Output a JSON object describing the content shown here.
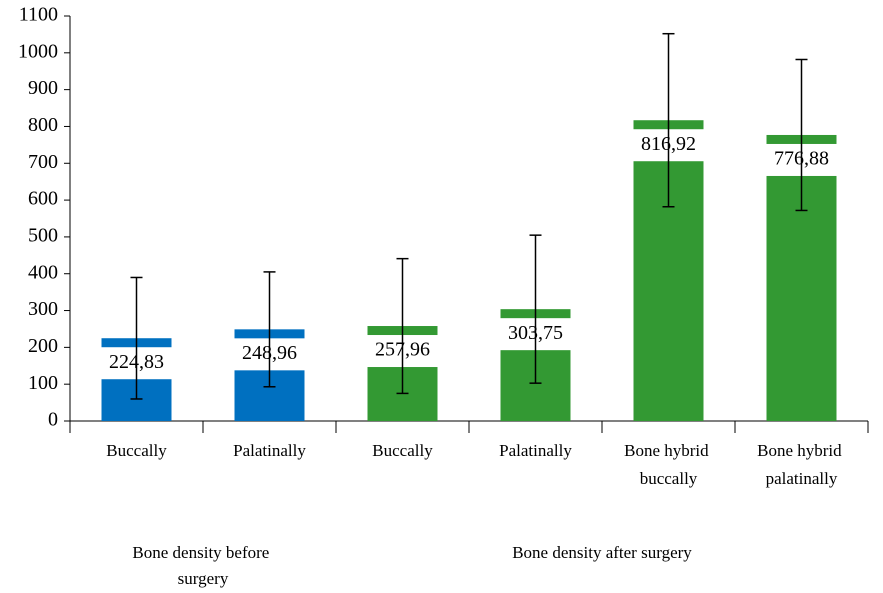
{
  "chart_data": {
    "type": "bar",
    "categories": [
      "Buccally",
      "Palatinally",
      "Buccally",
      "Palatinally",
      "Bone hybrid buccally",
      "Bone hybrid palatinally"
    ],
    "groups": [
      "Bone density before surgery",
      "Bone density after surgery"
    ],
    "values": [
      224.83,
      248.96,
      257.96,
      303.75,
      816.92,
      776.88
    ],
    "value_labels": [
      "224,83",
      "248,96",
      "257,96",
      "303,75",
      "816,92",
      "776,88"
    ],
    "errors": [
      165,
      156,
      183,
      201,
      235,
      205
    ],
    "colors": [
      "#0070c0",
      "#0070c0",
      "#339933",
      "#339933",
      "#339933",
      "#339933"
    ],
    "ylim": [
      0,
      1100
    ],
    "yticks": [
      0,
      100,
      200,
      300,
      400,
      500,
      600,
      700,
      800,
      900,
      1000,
      1100
    ]
  }
}
